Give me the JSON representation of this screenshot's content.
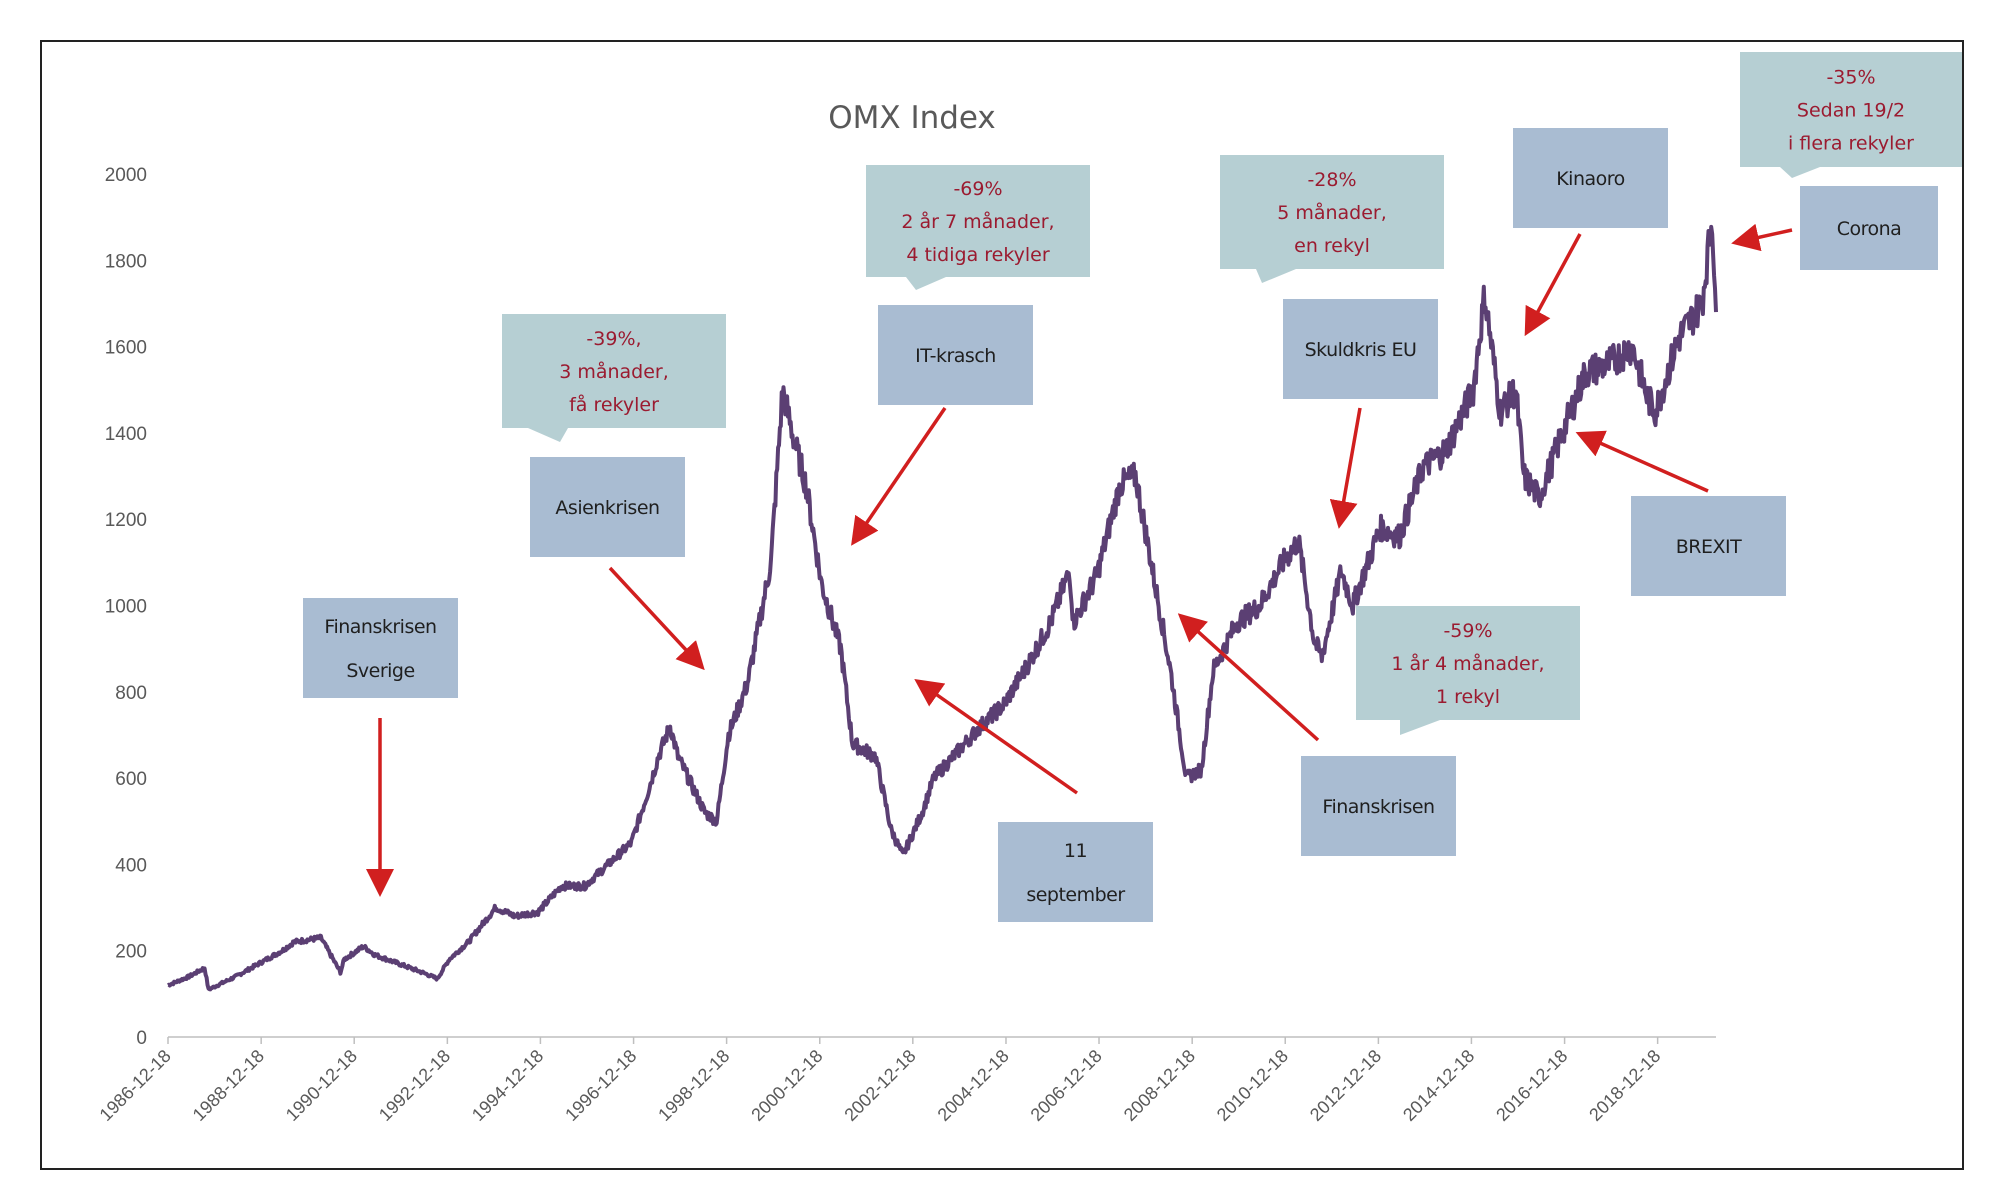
{
  "chart_data": {
    "type": "line",
    "title": "OMX Index",
    "xlabel": "",
    "ylabel": "",
    "ylim": [
      0,
      2000
    ],
    "yticks": [
      "0",
      "200",
      "400",
      "600",
      "800",
      "1000",
      "1200",
      "1400",
      "1600",
      "1800",
      "2000"
    ],
    "xticks": [
      "1986-12-18",
      "1988-12-18",
      "1990-12-18",
      "1992-12-18",
      "1994-12-18",
      "1996-12-18",
      "1998-12-18",
      "2000-12-18",
      "2002-12-18",
      "2004-12-18",
      "2006-12-18",
      "2008-12-18",
      "2010-12-18",
      "2012-12-18",
      "2014-12-18",
      "2016-12-18",
      "2018-12-18"
    ],
    "grid": false,
    "legend": "none",
    "series": [
      {
        "color": "#5b3f73",
        "x": [
          "1986-12-18",
          "1987-06-01",
          "1987-10-01",
          "1987-11-01",
          "1988-06-01",
          "1989-06-01",
          "1989-09-01",
          "1990-04-01",
          "1990-09-01",
          "1990-10-01",
          "1991-03-01",
          "1991-06-01",
          "1992-06-01",
          "1992-10-01",
          "1993-01-01",
          "1993-06-01",
          "1994-01-01",
          "1994-06-01",
          "1994-12-01",
          "1995-06-01",
          "1995-12-01",
          "1996-06-01",
          "1996-12-01",
          "1997-04-01",
          "1997-07-01",
          "1997-10-01",
          "1997-12-01",
          "1998-07-01",
          "1998-10-01",
          "1999-01-01",
          "1999-06-01",
          "1999-12-01",
          "2000-03-01",
          "2000-06-01",
          "2000-09-01",
          "2001-01-01",
          "2001-06-01",
          "2001-09-01",
          "2002-03-01",
          "2002-07-01",
          "2002-10-01",
          "2003-03-01",
          "2003-06-01",
          "2003-12-01",
          "2004-06-01",
          "2004-12-01",
          "2005-06-01",
          "2005-12-01",
          "2006-05-01",
          "2006-06-01",
          "2006-12-01",
          "2007-06-01",
          "2007-10-01",
          "2008-03-01",
          "2008-07-01",
          "2008-11-01",
          "2009-03-01",
          "2009-06-01",
          "2009-12-01",
          "2010-06-01",
          "2010-12-01",
          "2011-04-01",
          "2011-08-01",
          "2011-10-01",
          "2012-03-01",
          "2012-06-01",
          "2013-01-01",
          "2013-06-01",
          "2013-12-01",
          "2014-06-01",
          "2015-01-01",
          "2015-04-01",
          "2015-08-01",
          "2015-12-01",
          "2016-02-01",
          "2016-06-01",
          "2016-12-01",
          "2017-06-01",
          "2017-12-01",
          "2018-06-01",
          "2018-10-01",
          "2018-12-01",
          "2019-06-01",
          "2019-12-01",
          "2020-02-19",
          "2020-03-20"
        ],
        "values": [
          120,
          140,
          160,
          110,
          140,
          200,
          220,
          230,
          150,
          180,
          210,
          190,
          150,
          135,
          180,
          220,
          300,
          280,
          290,
          350,
          350,
          400,
          450,
          560,
          650,
          720,
          650,
          520,
          500,
          700,
          820,
          1100,
          1500,
          1380,
          1280,
          1050,
          900,
          680,
          650,
          480,
          420,
          520,
          600,
          660,
          720,
          770,
          860,
          960,
          1080,
          960,
          1070,
          1280,
          1300,
          1050,
          850,
          600,
          620,
          850,
          960,
          1000,
          1100,
          1150,
          920,
          880,
          1080,
          1000,
          1180,
          1160,
          1320,
          1360,
          1500,
          1720,
          1450,
          1500,
          1300,
          1250,
          1400,
          1540,
          1560,
          1600,
          1480,
          1450,
          1620,
          1700,
          1900,
          1680
        ]
      }
    ],
    "annotations": [
      {
        "label_lines": [
          "Finanskrisen",
          "Sverige"
        ]
      },
      {
        "label_lines": [
          "Asienkrisen"
        ],
        "note_lines": [
          "-39%,",
          "3 månader,",
          "få rekyler"
        ]
      },
      {
        "label_lines": [
          "IT-krasch"
        ],
        "note_lines": [
          "-69%",
          "2 år 7 månader,",
          "4 tidiga rekyler"
        ]
      },
      {
        "label_lines": [
          "11",
          "september"
        ]
      },
      {
        "label_lines": [
          "Finanskrisen"
        ],
        "note_lines": [
          "-59%",
          "1 år 4 månader,",
          "1 rekyl"
        ]
      },
      {
        "label_lines": [
          "Skuldkris EU"
        ],
        "note_lines": [
          "-28%",
          "5 månader,",
          "en rekyl"
        ]
      },
      {
        "label_lines": [
          "Kinaoro"
        ]
      },
      {
        "label_lines": [
          "BREXIT"
        ]
      },
      {
        "label_lines": [
          "Corona"
        ],
        "note_lines": [
          "-35%",
          "Sedan 19/2",
          "i flera rekyler"
        ]
      }
    ],
    "colors": {
      "label_box": "#a9bcd2",
      "note_box": "#b6cfd3",
      "note_text": "#9b1b30",
      "arrow": "#d11f1f"
    }
  }
}
